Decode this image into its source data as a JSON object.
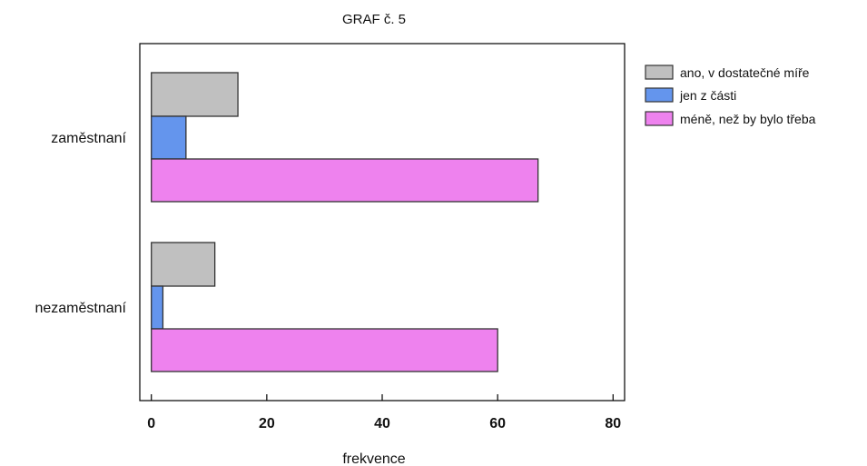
{
  "chart_data": {
    "type": "bar",
    "orientation": "horizontal",
    "title": "GRAF č. 5",
    "xlabel": "frekvence",
    "ylabel": "",
    "categories": [
      "zaměstnaní",
      "nezaměstnaní"
    ],
    "series": [
      {
        "name": "ano, v dostatečné míře",
        "color": "#c0c0c0",
        "values": [
          15,
          11
        ]
      },
      {
        "name": "jen z části",
        "color": "#6495ed",
        "values": [
          6,
          2
        ]
      },
      {
        "name": "méně, než by bylo třeba",
        "color": "#ee82ee",
        "values": [
          67,
          60
        ]
      }
    ],
    "xlim": [
      -2,
      82
    ],
    "xticks": [
      0,
      20,
      40,
      60,
      80
    ],
    "grid": false,
    "legend_position": "top-right"
  }
}
